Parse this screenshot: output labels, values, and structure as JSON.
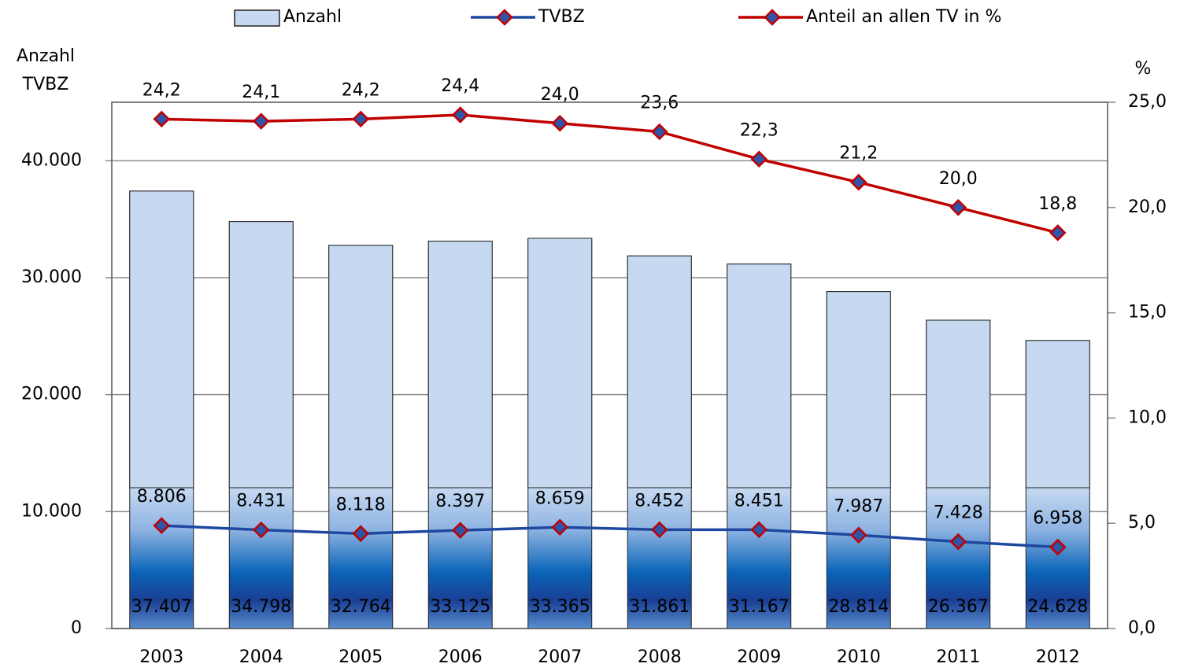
{
  "chart_data": {
    "type": "bar-line",
    "y_label": [
      "Anzahl",
      "TVBZ"
    ],
    "y2_label": "%",
    "categories": [
      "2003",
      "2004",
      "2005",
      "2006",
      "2007",
      "2008",
      "2009",
      "2010",
      "2011",
      "2012"
    ],
    "ylim": [
      0,
      45000
    ],
    "yticks": [
      0,
      {
        "value": 10000,
        "label": "10.000"
      },
      {
        "value": 20000,
        "label": "20.000"
      },
      {
        "value": 30000,
        "label": "30.000"
      },
      {
        "value": 40000,
        "label": "40.000"
      }
    ],
    "y2lim": [
      0,
      25
    ],
    "y2ticks": [
      {
        "value": 0,
        "label": "0,0"
      },
      {
        "value": 5,
        "label": "5,0"
      },
      {
        "value": 10,
        "label": "10,0"
      },
      {
        "value": 15,
        "label": "15,0"
      },
      {
        "value": 20,
        "label": "20,0"
      },
      {
        "value": 25,
        "label": "25,0"
      }
    ],
    "grid": true,
    "legend": "top",
    "marker": {
      "fill": "#2e55a8",
      "stroke": "#c00000"
    },
    "series": [
      {
        "name": "Anzahl",
        "type": "bar",
        "color": "#c6d9f1",
        "values": [
          37407,
          34798,
          32764,
          33125,
          33365,
          31861,
          31167,
          28814,
          26367,
          24628
        ],
        "value_labels": [
          "37.407",
          "34.798",
          "32.764",
          "33.125",
          "33.365",
          "31.861",
          "31.167",
          "28.814",
          "26.367",
          "24.628"
        ]
      },
      {
        "name": "TVBZ",
        "type": "line",
        "color": "#1f48a0",
        "values": [
          8806,
          8431,
          8118,
          8397,
          8659,
          8452,
          8451,
          7987,
          7428,
          6958
        ],
        "value_labels": [
          "8.806",
          "8.431",
          "8.118",
          "8.397",
          "8.659",
          "8.452",
          "8.451",
          "7.987",
          "7.428",
          "6.958"
        ]
      },
      {
        "name": "Anteil an allen TV in %",
        "type": "line",
        "axis": "y2",
        "color": "#c00000",
        "values": [
          24.2,
          24.1,
          24.2,
          24.4,
          24.0,
          23.6,
          22.3,
          21.2,
          20.0,
          18.8
        ],
        "value_labels": [
          "24,2",
          "24,1",
          "24,2",
          "24,4",
          "24,0",
          "23,6",
          "22,3",
          "21,2",
          "20,0",
          "18,8"
        ]
      }
    ]
  }
}
